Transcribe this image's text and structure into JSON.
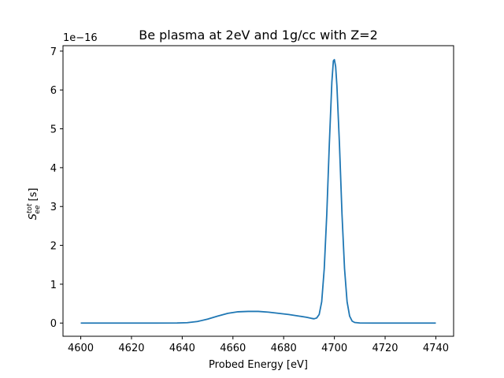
{
  "chart_data": {
    "type": "line",
    "title": "Be plasma at 2eV and 1g/cc with Z=2",
    "xlabel": "Probed Energy [eV]",
    "ylabel": {
      "symbol": "S",
      "superscript": "tot",
      "subscript": "ee",
      "unit": "[s]"
    },
    "y_scale_label": "1e−16",
    "xlim": [
      4593,
      4747
    ],
    "ylim": [
      -0.34,
      7.14
    ],
    "xticks": [
      4600,
      4620,
      4640,
      4660,
      4680,
      4700,
      4720,
      4740
    ],
    "xtick_labels": [
      "4600",
      "4620",
      "4640",
      "4660",
      "4680",
      "4700",
      "4720",
      "4740"
    ],
    "yticks": [
      0,
      1,
      2,
      3,
      4,
      5,
      6,
      7
    ],
    "ytick_labels": [
      "0",
      "1",
      "2",
      "3",
      "4",
      "5",
      "6",
      "7"
    ],
    "grid": false,
    "series": [
      {
        "color": "#1f77b4",
        "x": [
          4600,
          4610,
          4620,
          4630,
          4638,
          4642,
          4646,
          4650,
          4654,
          4658,
          4662,
          4666,
          4670,
          4674,
          4678,
          4682,
          4686,
          4689,
          4691,
          4692,
          4693,
          4694,
          4695,
          4696,
          4697,
          4698,
          4699,
          4699.6,
          4700,
          4700.5,
          4701,
          4702,
          4703,
          4704,
          4705,
          4706,
          4707,
          4708,
          4710,
          4715,
          4720,
          4730,
          4740
        ],
        "y": [
          0,
          0,
          0,
          0,
          0.002,
          0.01,
          0.04,
          0.1,
          0.18,
          0.25,
          0.29,
          0.3,
          0.3,
          0.28,
          0.25,
          0.22,
          0.18,
          0.15,
          0.12,
          0.11,
          0.13,
          0.22,
          0.55,
          1.4,
          2.8,
          4.6,
          6.2,
          6.75,
          6.78,
          6.6,
          6.1,
          4.6,
          2.8,
          1.4,
          0.55,
          0.18,
          0.05,
          0.015,
          0.002,
          0,
          0,
          0,
          0
        ]
      }
    ]
  }
}
